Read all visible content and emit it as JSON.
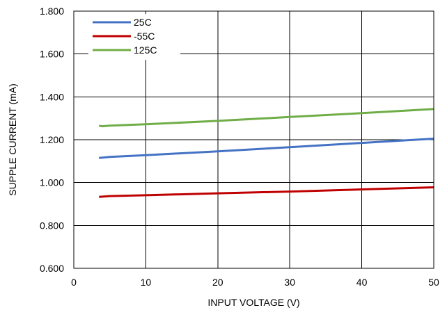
{
  "chart_data": {
    "type": "line",
    "title": "",
    "xlabel": "INPUT VOLTAGE (V)",
    "ylabel": "SUPPLE CURRENT (mA)",
    "xlim": [
      0,
      50
    ],
    "ylim": [
      0.6,
      1.8
    ],
    "x_ticks": [
      0,
      10,
      20,
      30,
      40,
      50
    ],
    "x_tick_labels": [
      "0",
      "10",
      "20",
      "30",
      "40",
      "50"
    ],
    "y_ticks": [
      0.6,
      0.8,
      1.0,
      1.2,
      1.4,
      1.6,
      1.8
    ],
    "y_tick_labels": [
      "0.600",
      "0.800",
      "1.000",
      "1.200",
      "1.400",
      "1.600",
      "1.800"
    ],
    "grid": true,
    "legend_position": "top-left",
    "series": [
      {
        "name": "25C",
        "color": "#4472C4",
        "x": [
          3.5,
          5,
          10,
          20,
          30,
          40,
          50
        ],
        "y": [
          1.115,
          1.12,
          1.128,
          1.146,
          1.165,
          1.185,
          1.205
        ]
      },
      {
        "name": "-55C",
        "color": "#C00000",
        "x": [
          3.5,
          5,
          10,
          20,
          30,
          40,
          50
        ],
        "y": [
          0.933,
          0.937,
          0.941,
          0.95,
          0.958,
          0.968,
          0.978
        ]
      },
      {
        "name": "125C",
        "color": "#70AD47",
        "x": [
          3.5,
          4,
          5,
          10,
          20,
          30,
          40,
          50
        ],
        "y": [
          1.265,
          1.263,
          1.266,
          1.272,
          1.288,
          1.306,
          1.324,
          1.343
        ]
      }
    ]
  }
}
